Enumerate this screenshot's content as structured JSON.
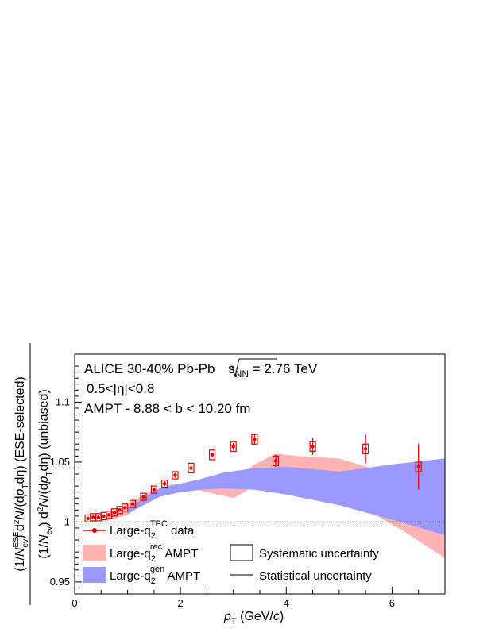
{
  "chart_data": {
    "type": "scatter",
    "xlabel": "p_T (GeV/c)",
    "xlabel_parts": {
      "p": "p",
      "sub": "T",
      "rest": " (GeV/",
      "c": "c",
      "close": ")"
    },
    "ylabel_top": "(1/N^ESE_ev) d²N/(dp_T dη) (ESE-selected)",
    "ylabel_bottom": "(1/N_ev) d²N/(dp_T dη) (unbiased)",
    "ylabel_top_parts": {
      "pre": "(1/",
      "N": "N",
      "sup": "ESE",
      "sub": "ev",
      "mid": ") d",
      "two": "2",
      "N2": "N",
      "slash": "/(d",
      "p": "p",
      "T": "T",
      "end": "dη) (ESE-selected)"
    },
    "ylabel_bottom_parts": {
      "pre": "(1/",
      "N": "N",
      "sub": "ev",
      "mid": ") d",
      "two": "2",
      "N2": "N",
      "slash": "/(d",
      "p": "p",
      "T": "T",
      "end": "dη) (unbiased)"
    },
    "xlim": [
      0,
      7
    ],
    "ylim": [
      0.94,
      1.14
    ],
    "x_ticks": [
      "0",
      "2",
      "4",
      "6"
    ],
    "x_tick_values": [
      0,
      2,
      4,
      6
    ],
    "y_ticks": [
      "0.95",
      "1",
      "1.05",
      "1.1"
    ],
    "y_tick_values": [
      0.95,
      1.0,
      1.05,
      1.1
    ],
    "annotations": {
      "line1_pre": "ALICE 30-40% Pb-Pb ",
      "line1_s": "s",
      "line1_nn": "NN",
      "line1_post": " = 2.76 TeV",
      "line2": "0.5<|η|<0.8",
      "line3": "AMPT - 8.88 < b < 10.20 fm"
    },
    "reference_line": 1.0,
    "series": [
      {
        "kind": "points",
        "legend_pre": "Large-q",
        "legend_sub": "2",
        "legend_sup": "TPC",
        "legend_post": " data",
        "color": "#e00000",
        "x": [
          0.25,
          0.35,
          0.45,
          0.55,
          0.65,
          0.75,
          0.85,
          0.95,
          1.1,
          1.3,
          1.5,
          1.7,
          1.9,
          2.2,
          2.6,
          3.0,
          3.4,
          3.8,
          4.5,
          5.5,
          6.5
        ],
        "y": [
          1.003,
          1.004,
          1.004,
          1.005,
          1.006,
          1.008,
          1.01,
          1.012,
          1.015,
          1.021,
          1.027,
          1.032,
          1.039,
          1.045,
          1.056,
          1.063,
          1.069,
          1.051,
          1.063,
          1.061,
          1.046
        ],
        "stat_err": [
          0.001,
          0.001,
          0.001,
          0.001,
          0.001,
          0.001,
          0.001,
          0.001,
          0.001,
          0.001,
          0.001,
          0.002,
          0.002,
          0.002,
          0.002,
          0.003,
          0.004,
          0.005,
          0.007,
          0.012,
          0.019
        ],
        "sys_err": [
          0.003,
          0.003,
          0.003,
          0.003,
          0.003,
          0.003,
          0.003,
          0.003,
          0.003,
          0.003,
          0.003,
          0.003,
          0.003,
          0.004,
          0.004,
          0.004,
          0.004,
          0.004,
          0.004,
          0.004,
          0.004
        ]
      },
      {
        "kind": "band",
        "legend_pre": "Large-q",
        "legend_sub": "2",
        "legend_sup": "rec",
        "legend_post": " AMPT",
        "color": "#ffb3b3",
        "x": [
          0.6,
          1.0,
          1.4,
          1.8,
          2.2,
          2.6,
          3.0,
          3.4,
          3.8,
          4.2,
          5.0,
          5.6,
          6.2,
          7.0
        ],
        "upper": [
          1.006,
          1.015,
          1.025,
          1.031,
          1.033,
          1.03,
          1.033,
          1.048,
          1.057,
          1.055,
          1.053,
          1.045,
          1.03,
          1.003
        ],
        "lower": [
          1.001,
          1.006,
          1.018,
          1.026,
          1.028,
          1.024,
          1.02,
          1.03,
          1.04,
          1.035,
          1.022,
          1.008,
          0.993,
          0.97
        ]
      },
      {
        "kind": "band",
        "legend_pre": "Large-q",
        "legend_sub": "2",
        "legend_sup": "gen",
        "legend_post": " AMPT",
        "color": "#9999ff",
        "x": [
          1.0,
          1.3,
          1.6,
          2.0,
          2.4,
          2.8,
          3.4,
          4.0,
          5.0,
          6.0,
          7.0
        ],
        "upper": [
          1.011,
          1.02,
          1.028,
          1.032,
          1.036,
          1.041,
          1.045,
          1.046,
          1.042,
          1.048,
          1.053
        ],
        "lower": [
          1.007,
          1.014,
          1.021,
          1.025,
          1.027,
          1.028,
          1.027,
          1.023,
          1.014,
          1.002,
          0.989
        ]
      }
    ],
    "legend_extra": [
      {
        "kind": "box",
        "label": "Systematic uncertainty"
      },
      {
        "kind": "line",
        "label": "Statistical uncertainty"
      }
    ]
  }
}
